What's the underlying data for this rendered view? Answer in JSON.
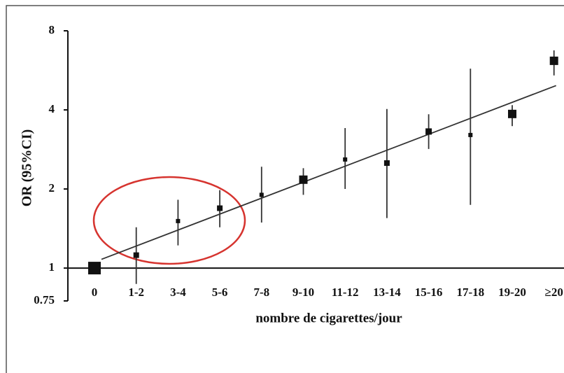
{
  "chart_data": {
    "type": "forest",
    "y_label": "OR (95%CI)",
    "x_label": "nombre de cigarettes/jour",
    "categories": [
      "0",
      "1-2",
      "3-4",
      "5-6",
      "7-8",
      "9-10",
      "11-12",
      "13-14",
      "15-16",
      "17-18",
      "19-20",
      "≥20"
    ],
    "values": [
      1.0,
      1.12,
      1.51,
      1.69,
      1.9,
      2.17,
      2.59,
      2.51,
      3.31,
      3.21,
      3.86,
      6.15
    ],
    "ci_low": [
      null,
      0.87,
      1.22,
      1.43,
      1.49,
      1.9,
      2.0,
      1.55,
      2.84,
      1.74,
      3.47,
      5.41
    ],
    "ci_high": [
      null,
      1.43,
      1.82,
      1.98,
      2.43,
      2.4,
      3.41,
      4.03,
      3.85,
      5.74,
      4.17,
      6.74
    ],
    "marker_size": [
      18,
      8,
      6,
      8,
      6,
      12,
      6,
      8,
      9,
      6,
      12,
      12
    ],
    "trend": {
      "values": [
        1.08,
        4.95
      ]
    },
    "color": "#111111",
    "log_scale": true,
    "reference_line": 1,
    "ylim": [
      0.75,
      8
    ],
    "yticks": [
      0.75,
      1,
      2,
      4,
      8
    ]
  }
}
